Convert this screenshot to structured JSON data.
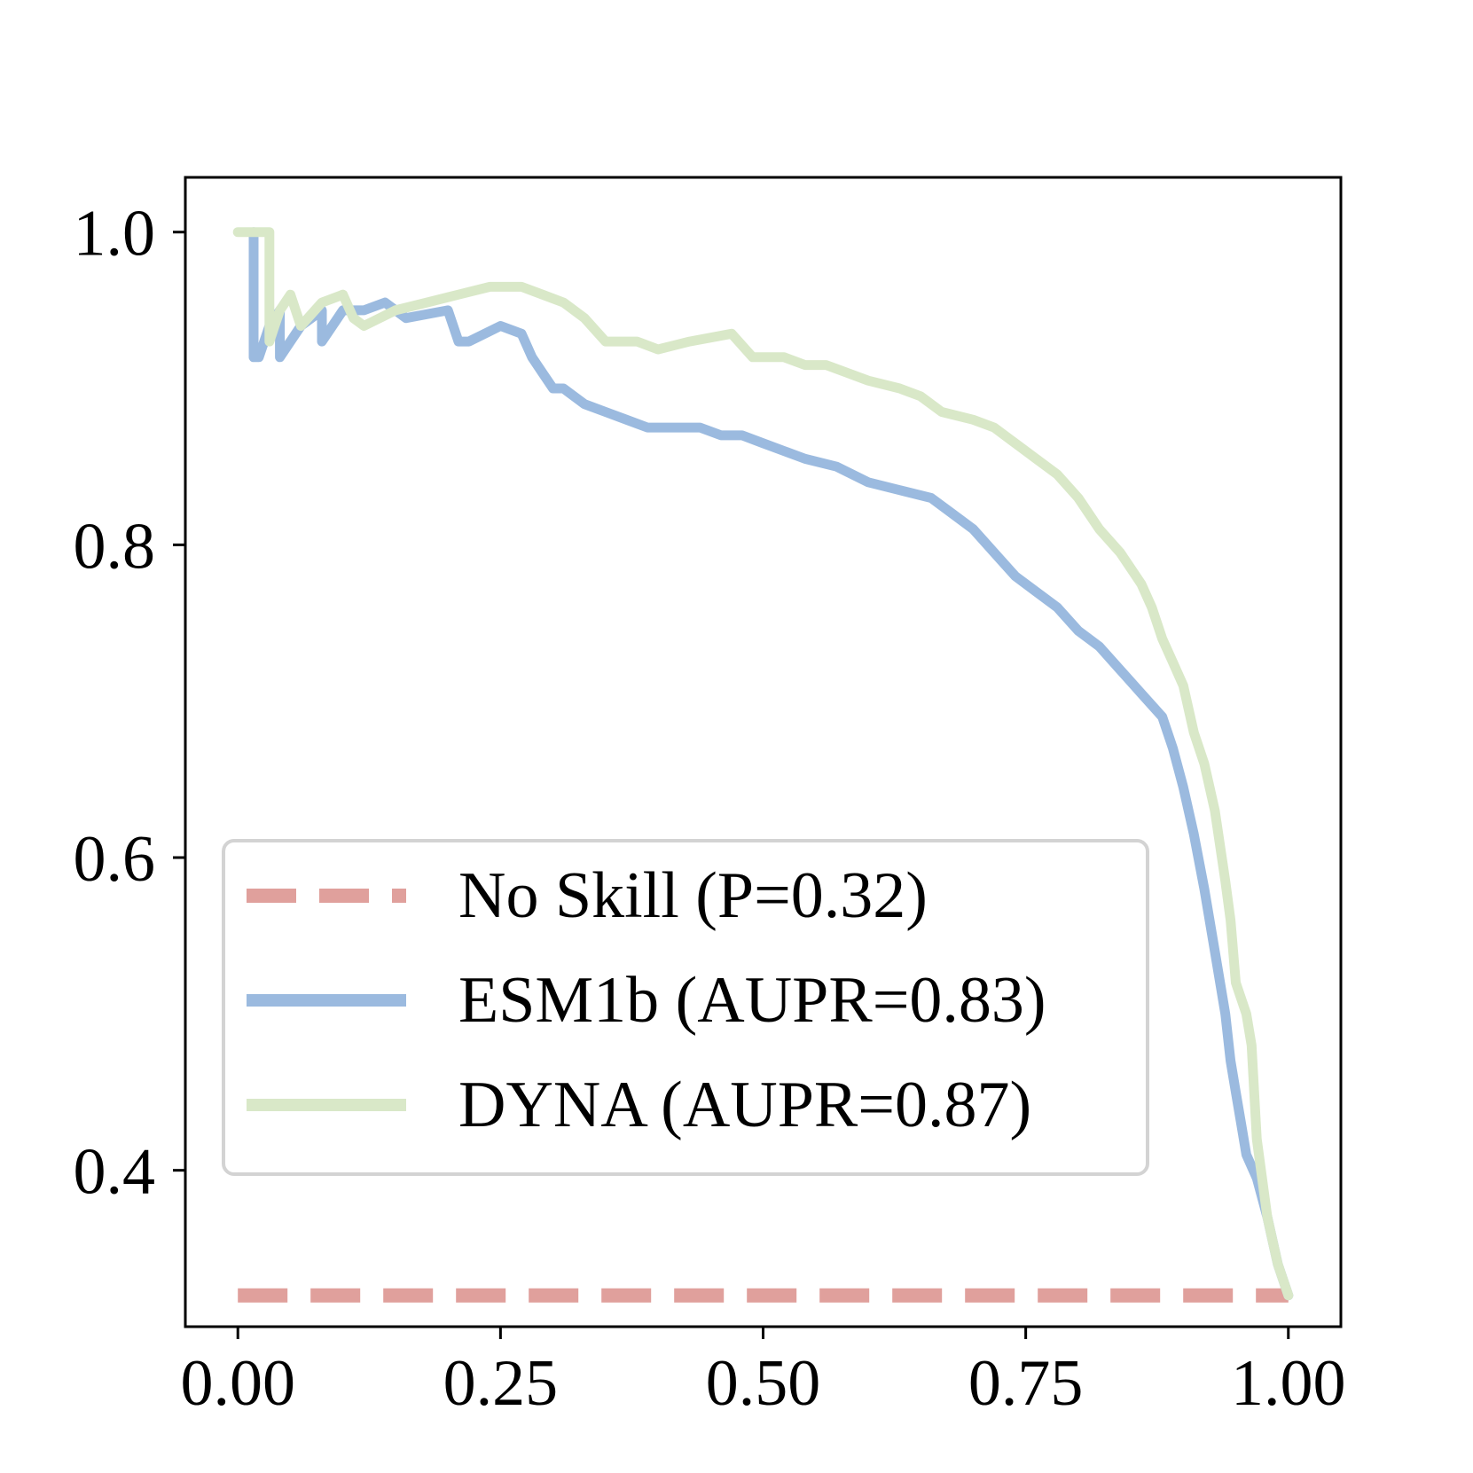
{
  "chart_data": {
    "type": "line",
    "title": "",
    "xlabel": "",
    "ylabel": "",
    "xlim": [
      -0.05,
      1.05
    ],
    "ylim": [
      0.3,
      1.035
    ],
    "x_ticks": [
      0.0,
      0.25,
      0.5,
      0.75,
      1.0
    ],
    "x_tick_labels": [
      "0.00",
      "0.25",
      "0.50",
      "0.75",
      "1.00"
    ],
    "y_ticks": [
      0.4,
      0.6,
      0.8,
      1.0
    ],
    "y_tick_labels": [
      "0.4",
      "0.6",
      "0.8",
      "1.0"
    ],
    "grid": false,
    "legend_position": "lower-left",
    "series": [
      {
        "name": "No Skill (P=0.32)",
        "color": "#e0a09c",
        "style": "dashed",
        "x": [
          0.0,
          1.0
        ],
        "y": [
          0.32,
          0.32
        ]
      },
      {
        "name": "ESM1b (AUPR=0.83)",
        "color": "#9bbadf",
        "style": "solid",
        "x": [
          0.015,
          0.015,
          0.02,
          0.03,
          0.04,
          0.04,
          0.05,
          0.06,
          0.08,
          0.08,
          0.1,
          0.11,
          0.12,
          0.14,
          0.16,
          0.2,
          0.21,
          0.22,
          0.25,
          0.27,
          0.28,
          0.29,
          0.3,
          0.31,
          0.33,
          0.35,
          0.37,
          0.39,
          0.41,
          0.44,
          0.46,
          0.48,
          0.5,
          0.52,
          0.54,
          0.57,
          0.6,
          0.63,
          0.66,
          0.68,
          0.7,
          0.72,
          0.74,
          0.76,
          0.78,
          0.8,
          0.82,
          0.84,
          0.86,
          0.88,
          0.89,
          0.9,
          0.91,
          0.92,
          0.93,
          0.94,
          0.945,
          0.95,
          0.955,
          0.96,
          0.97,
          0.98,
          0.99,
          1.0
        ],
        "y": [
          1.0,
          0.92,
          0.92,
          0.94,
          0.95,
          0.92,
          0.93,
          0.94,
          0.95,
          0.93,
          0.95,
          0.95,
          0.95,
          0.955,
          0.945,
          0.95,
          0.93,
          0.93,
          0.94,
          0.935,
          0.92,
          0.91,
          0.9,
          0.9,
          0.89,
          0.885,
          0.88,
          0.875,
          0.875,
          0.875,
          0.87,
          0.87,
          0.865,
          0.86,
          0.855,
          0.85,
          0.84,
          0.835,
          0.83,
          0.82,
          0.81,
          0.795,
          0.78,
          0.77,
          0.76,
          0.745,
          0.735,
          0.72,
          0.705,
          0.69,
          0.67,
          0.645,
          0.615,
          0.58,
          0.54,
          0.5,
          0.47,
          0.45,
          0.43,
          0.41,
          0.395,
          0.37,
          0.34,
          0.32
        ]
      },
      {
        "name": "DYNA (AUPR=0.87)",
        "color": "#d9e8c8",
        "style": "solid",
        "x": [
          0.0,
          0.02,
          0.03,
          0.03,
          0.04,
          0.05,
          0.06,
          0.08,
          0.1,
          0.11,
          0.12,
          0.15,
          0.18,
          0.21,
          0.24,
          0.27,
          0.29,
          0.31,
          0.33,
          0.35,
          0.38,
          0.4,
          0.43,
          0.47,
          0.49,
          0.52,
          0.54,
          0.56,
          0.58,
          0.6,
          0.63,
          0.65,
          0.67,
          0.7,
          0.72,
          0.74,
          0.76,
          0.78,
          0.8,
          0.82,
          0.84,
          0.86,
          0.87,
          0.88,
          0.89,
          0.9,
          0.91,
          0.92,
          0.93,
          0.94,
          0.945,
          0.95,
          0.96,
          0.965,
          0.97,
          0.98,
          0.99,
          1.0
        ],
        "y": [
          1.0,
          1.0,
          1.0,
          0.93,
          0.95,
          0.96,
          0.94,
          0.955,
          0.96,
          0.945,
          0.94,
          0.95,
          0.955,
          0.96,
          0.965,
          0.965,
          0.96,
          0.955,
          0.945,
          0.93,
          0.93,
          0.925,
          0.93,
          0.935,
          0.92,
          0.92,
          0.915,
          0.915,
          0.91,
          0.905,
          0.9,
          0.895,
          0.885,
          0.88,
          0.875,
          0.865,
          0.855,
          0.845,
          0.83,
          0.81,
          0.795,
          0.775,
          0.76,
          0.74,
          0.725,
          0.71,
          0.68,
          0.66,
          0.63,
          0.585,
          0.56,
          0.52,
          0.5,
          0.48,
          0.42,
          0.37,
          0.34,
          0.32
        ]
      }
    ]
  }
}
